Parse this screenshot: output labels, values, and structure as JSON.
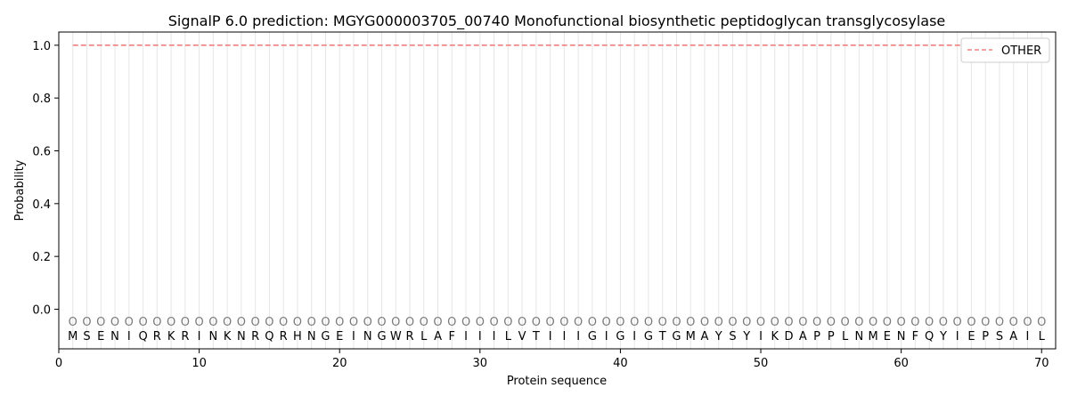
{
  "chart_data": {
    "type": "line",
    "title": "SignalP 6.0 prediction: MGYG000003705_00740 Monofunctional biosynthetic peptidoglycan transglycosylase",
    "xlabel": "Protein sequence",
    "ylabel": "Probability",
    "xlim": [
      0,
      71
    ],
    "ylim": [
      -0.15,
      1.05
    ],
    "x_ticks": [
      0,
      10,
      20,
      30,
      40,
      50,
      60,
      70
    ],
    "y_ticks": [
      0.0,
      0.2,
      0.4,
      0.6,
      0.8,
      1.0
    ],
    "x_tick_labels": [
      "0",
      "10",
      "20",
      "30",
      "40",
      "50",
      "60",
      "70"
    ],
    "y_tick_labels": [
      "0.0",
      "0.2",
      "0.4",
      "0.6",
      "0.8",
      "1.0"
    ],
    "legend_position": "top-right",
    "sequence": [
      "M",
      "S",
      "E",
      "N",
      "I",
      "Q",
      "R",
      "K",
      "R",
      "I",
      "N",
      "K",
      "N",
      "R",
      "Q",
      "R",
      "H",
      "N",
      "G",
      "E",
      "I",
      "N",
      "G",
      "W",
      "R",
      "L",
      "A",
      "F",
      "I",
      "I",
      "I",
      "L",
      "V",
      "T",
      "I",
      "I",
      "I",
      "G",
      "I",
      "G",
      "I",
      "G",
      "T",
      "G",
      "M",
      "A",
      "Y",
      "S",
      "Y",
      "I",
      "K",
      "D",
      "A",
      "P",
      "P",
      "L",
      "N",
      "M",
      "E",
      "N",
      "F",
      "Q",
      "Y",
      "I",
      "E",
      "P",
      "S",
      "A",
      "I",
      "L"
    ],
    "region_marker_label": "O",
    "region_marker_y": -0.045,
    "series": [
      {
        "name": "OTHER",
        "color": "#f08080",
        "style": "dashed",
        "x_start": 1,
        "x_end": 70,
        "value": 1.0
      }
    ]
  }
}
